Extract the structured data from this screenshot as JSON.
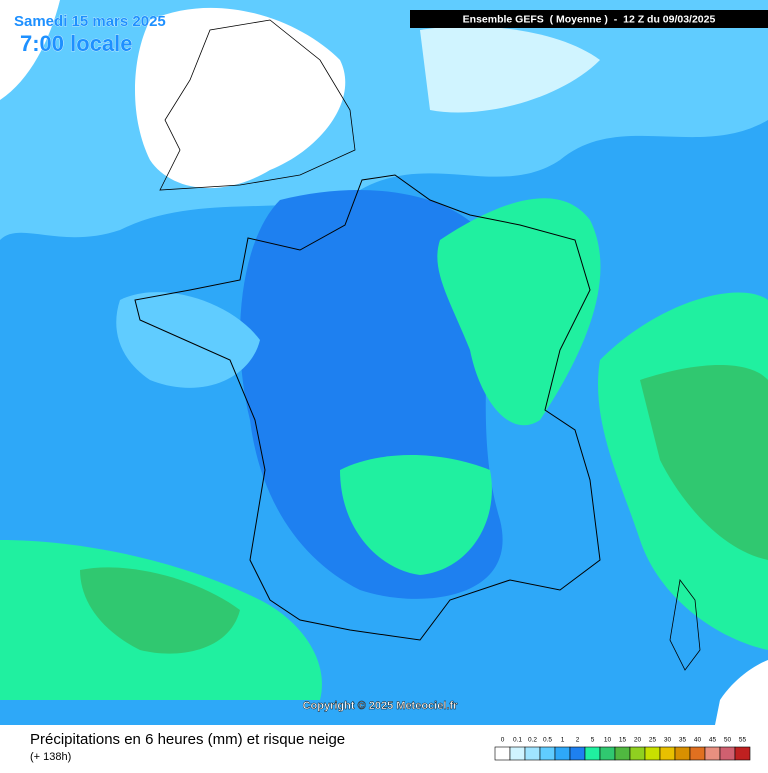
{
  "header": {
    "date": "Samedi 15 mars 2025",
    "time": "7:00 locale",
    "model": "Ensemble GEFS  ( Moyenne )  -  12 Z du 09/03/2025"
  },
  "copyright": "Copyright © 2025 Meteociel.fr",
  "footer": {
    "title": "Précipitations en 6 heures (mm) et risque neige",
    "lead": "(+ 138h)"
  },
  "legend": {
    "items": [
      {
        "label": 0,
        "color": "#ffffff"
      },
      {
        "label": 0.1,
        "color": "#d0f4ff"
      },
      {
        "label": 0.2,
        "color": "#a0e4ff"
      },
      {
        "label": 0.5,
        "color": "#60ccff"
      },
      {
        "label": 1,
        "color": "#2ea8f8"
      },
      {
        "label": 2,
        "color": "#1e80f0"
      },
      {
        "label": 5,
        "color": "#20f0a0"
      },
      {
        "label": 10,
        "color": "#30c870"
      },
      {
        "label": 15,
        "color": "#50b840"
      },
      {
        "label": 20,
        "color": "#90d020"
      },
      {
        "label": 25,
        "color": "#c8e000"
      },
      {
        "label": 30,
        "color": "#e8c000"
      },
      {
        "label": 35,
        "color": "#d89000"
      },
      {
        "label": 40,
        "color": "#e07020"
      },
      {
        "label": 45,
        "color": "#e89080"
      },
      {
        "label": 50,
        "color": "#d06070"
      },
      {
        "label": 55,
        "color": "#c02020"
      }
    ]
  }
}
